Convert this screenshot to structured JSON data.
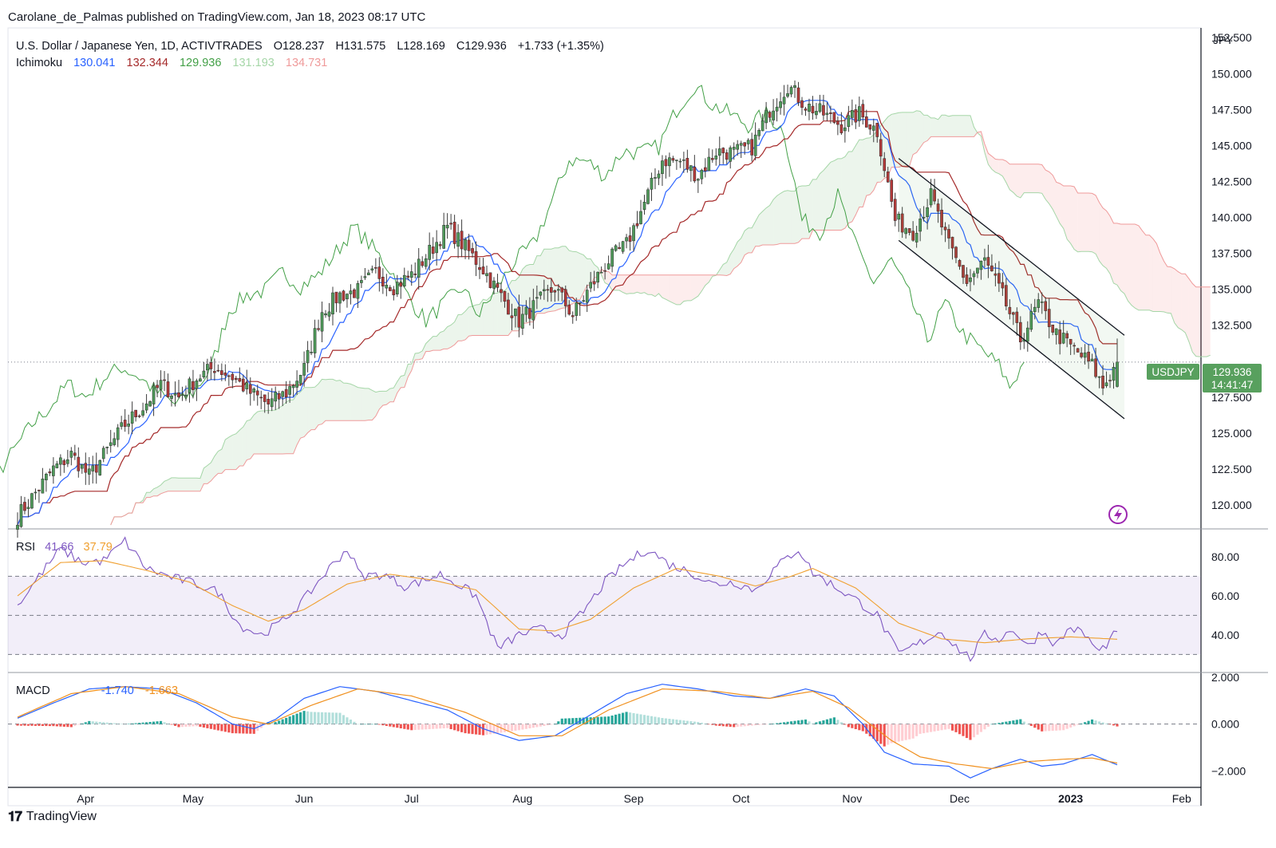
{
  "caption": "Carolane_de_Palmas published on TradingView.com, Jan 18, 2023 08:17 UTC",
  "footer": {
    "brand": "TradingView",
    "logo_glyph": "𝟏𝟕"
  },
  "colors": {
    "up": "#26a69a",
    "up_body": "#4f9a5a",
    "down": "#ef5350",
    "down_body": "#b23a3a",
    "tenkan": "#2962ff",
    "kijun": "#a52a2a",
    "chikou": "#43a047",
    "span_a": "#a5d6a7",
    "span_b": "#ef9a9a",
    "rsi": "#7e57c2",
    "rsi_ma": "#f0a030",
    "macd": "#2962ff",
    "signal": "#f0901e",
    "badge": "#58a05e"
  },
  "legend": {
    "symbol": "U.S. Dollar / Japanese Yen, 1D, ACTIVTRADES",
    "o": "O128.237",
    "h": "H131.575",
    "l": "L128.169",
    "c": "C129.936",
    "chg": "+1.733 (+1.35%)",
    "ichimoku_label": "Ichimoku",
    "ichimoku_values": [
      "130.041",
      "132.344",
      "129.936",
      "131.193",
      "134.731"
    ],
    "rsi_label": "RSI",
    "rsi_values": [
      "41.66",
      "37.79"
    ],
    "macd_label": "MACD",
    "macd_values": [
      "-1.740",
      "-1.663"
    ]
  },
  "price_badge": {
    "symbol": "USDJPY",
    "price": "129.936",
    "countdown": "14:41:47"
  },
  "currency_label": "JPY",
  "chart_data": {
    "type": "candlestick",
    "title": "U.S. Dollar / Japanese Yen, 1D, ACTIVTRADES",
    "price_axis": {
      "min": 118.5,
      "max": 152.9,
      "ticks": [
        "152.500",
        "150.000",
        "147.500",
        "145.000",
        "142.500",
        "140.000",
        "137.500",
        "135.000",
        "132.500",
        "127.500",
        "125.000",
        "122.500",
        "120.000"
      ]
    },
    "rsi_axis": {
      "min": 22,
      "max": 93,
      "ticks": [
        "80.00",
        "60.00",
        "40.00"
      ],
      "band": [
        30,
        70
      ],
      "mid": 50
    },
    "macd_axis": {
      "min": -2.6,
      "max": 2.1,
      "ticks": [
        "2.000",
        "0.000",
        "−2.000"
      ]
    },
    "time_axis": {
      "labels": [
        "Apr",
        "May",
        "Jun",
        "Jul",
        "Aug",
        "Sep",
        "Oct",
        "Nov",
        "Dec",
        "2023",
        "Feb"
      ],
      "label_days": [
        19,
        49,
        80,
        110,
        141,
        172,
        202,
        233,
        263,
        294,
        325
      ]
    },
    "last_day": 307,
    "closes": [
      [
        0,
        119.2
      ],
      [
        10,
        122.5
      ],
      [
        15,
        123.5
      ],
      [
        20,
        122.0
      ],
      [
        25,
        123.8
      ],
      [
        30,
        125.6
      ],
      [
        35,
        126.8
      ],
      [
        40,
        128.4
      ],
      [
        45,
        127.5
      ],
      [
        50,
        128.8
      ],
      [
        55,
        129.6
      ],
      [
        60,
        128.9
      ],
      [
        65,
        127.8
      ],
      [
        70,
        127.0
      ],
      [
        75,
        127.8
      ],
      [
        80,
        129.5
      ],
      [
        85,
        133.5
      ],
      [
        90,
        134.6
      ],
      [
        95,
        134.9
      ],
      [
        100,
        136.2
      ],
      [
        105,
        135.2
      ],
      [
        110,
        136.0
      ],
      [
        115,
        137.6
      ],
      [
        120,
        139.3
      ],
      [
        125,
        137.9
      ],
      [
        130,
        136.4
      ],
      [
        135,
        134.5
      ],
      [
        140,
        132.8
      ],
      [
        145,
        134.0
      ],
      [
        150,
        135.1
      ],
      [
        155,
        133.2
      ],
      [
        160,
        135.2
      ],
      [
        165,
        137.0
      ],
      [
        170,
        138.1
      ],
      [
        175,
        141.0
      ],
      [
        180,
        144.0
      ],
      [
        185,
        143.9
      ],
      [
        190,
        142.9
      ],
      [
        195,
        144.6
      ],
      [
        200,
        144.5
      ],
      [
        205,
        144.9
      ],
      [
        210,
        147.5
      ],
      [
        215,
        149.2
      ],
      [
        220,
        147.8
      ],
      [
        225,
        147.2
      ],
      [
        230,
        146.4
      ],
      [
        235,
        147.2
      ],
      [
        240,
        146.0
      ],
      [
        245,
        139.8
      ],
      [
        250,
        139.0
      ],
      [
        255,
        141.5
      ],
      [
        260,
        138.0
      ],
      [
        265,
        135.5
      ],
      [
        270,
        137.0
      ],
      [
        275,
        134.5
      ],
      [
        280,
        131.5
      ],
      [
        285,
        134.0
      ],
      [
        290,
        131.9
      ],
      [
        295,
        130.8
      ],
      [
        300,
        129.7
      ],
      [
        303,
        128.2
      ],
      [
        307,
        129.9
      ]
    ],
    "rsi_points": [
      [
        0,
        55
      ],
      [
        6,
        70
      ],
      [
        12,
        84
      ],
      [
        18,
        77
      ],
      [
        24,
        78
      ],
      [
        30,
        88
      ],
      [
        36,
        74
      ],
      [
        42,
        70
      ],
      [
        50,
        66
      ],
      [
        56,
        62
      ],
      [
        62,
        45
      ],
      [
        68,
        40
      ],
      [
        74,
        47
      ],
      [
        80,
        58
      ],
      [
        86,
        72
      ],
      [
        92,
        84
      ],
      [
        96,
        70
      ],
      [
        102,
        71
      ],
      [
        108,
        65
      ],
      [
        114,
        68
      ],
      [
        118,
        71
      ],
      [
        122,
        67
      ],
      [
        128,
        60
      ],
      [
        134,
        33
      ],
      [
        140,
        40
      ],
      [
        146,
        43
      ],
      [
        152,
        40
      ],
      [
        158,
        52
      ],
      [
        164,
        67
      ],
      [
        170,
        77
      ],
      [
        176,
        84
      ],
      [
        182,
        76
      ],
      [
        188,
        72
      ],
      [
        194,
        66
      ],
      [
        200,
        67
      ],
      [
        206,
        63
      ],
      [
        212,
        75
      ],
      [
        218,
        84
      ],
      [
        222,
        72
      ],
      [
        228,
        65
      ],
      [
        234,
        58
      ],
      [
        240,
        50
      ],
      [
        246,
        30
      ],
      [
        252,
        36
      ],
      [
        258,
        42
      ],
      [
        262,
        34
      ],
      [
        266,
        28
      ],
      [
        270,
        40
      ],
      [
        274,
        38
      ],
      [
        278,
        43
      ],
      [
        282,
        34
      ],
      [
        286,
        42
      ],
      [
        290,
        35
      ],
      [
        294,
        44
      ],
      [
        298,
        40
      ],
      [
        302,
        31
      ],
      [
        307,
        41.7
      ]
    ],
    "rsi_ma_points": [
      [
        0,
        60
      ],
      [
        12,
        77
      ],
      [
        24,
        78
      ],
      [
        36,
        73
      ],
      [
        48,
        67
      ],
      [
        60,
        55
      ],
      [
        70,
        47
      ],
      [
        80,
        53
      ],
      [
        92,
        66
      ],
      [
        104,
        71
      ],
      [
        116,
        68
      ],
      [
        128,
        63
      ],
      [
        140,
        43
      ],
      [
        150,
        42
      ],
      [
        160,
        48
      ],
      [
        172,
        64
      ],
      [
        184,
        74
      ],
      [
        196,
        70
      ],
      [
        206,
        65
      ],
      [
        216,
        70
      ],
      [
        222,
        74
      ],
      [
        234,
        64
      ],
      [
        246,
        46
      ],
      [
        258,
        38
      ],
      [
        270,
        36
      ],
      [
        282,
        38
      ],
      [
        294,
        39
      ],
      [
        307,
        37.8
      ]
    ],
    "macd_points": [
      [
        0,
        0.25
      ],
      [
        10,
        0.9
      ],
      [
        20,
        1.5
      ],
      [
        30,
        1.6
      ],
      [
        40,
        1.5
      ],
      [
        50,
        0.9
      ],
      [
        60,
        0.0
      ],
      [
        66,
        -0.2
      ],
      [
        72,
        0.2
      ],
      [
        80,
        1.1
      ],
      [
        90,
        1.6
      ],
      [
        100,
        1.4
      ],
      [
        110,
        1.0
      ],
      [
        120,
        0.6
      ],
      [
        130,
        -0.2
      ],
      [
        140,
        -0.7
      ],
      [
        150,
        -0.5
      ],
      [
        160,
        0.4
      ],
      [
        170,
        1.3
      ],
      [
        180,
        1.7
      ],
      [
        190,
        1.5
      ],
      [
        200,
        1.2
      ],
      [
        210,
        1.1
      ],
      [
        220,
        1.5
      ],
      [
        228,
        1.2
      ],
      [
        236,
        0.0
      ],
      [
        242,
        -1.2
      ],
      [
        250,
        -1.7
      ],
      [
        260,
        -1.8
      ],
      [
        266,
        -2.3
      ],
      [
        272,
        -1.9
      ],
      [
        280,
        -1.5
      ],
      [
        286,
        -1.8
      ],
      [
        292,
        -1.7
      ],
      [
        300,
        -1.3
      ],
      [
        307,
        -1.74
      ]
    ],
    "signal_points": [
      [
        0,
        0.3
      ],
      [
        15,
        1.3
      ],
      [
        30,
        1.6
      ],
      [
        45,
        1.3
      ],
      [
        60,
        0.3
      ],
      [
        70,
        0.0
      ],
      [
        82,
        0.8
      ],
      [
        95,
        1.5
      ],
      [
        110,
        1.2
      ],
      [
        125,
        0.5
      ],
      [
        140,
        -0.5
      ],
      [
        152,
        -0.5
      ],
      [
        165,
        0.6
      ],
      [
        180,
        1.5
      ],
      [
        195,
        1.4
      ],
      [
        210,
        1.1
      ],
      [
        222,
        1.4
      ],
      [
        232,
        0.7
      ],
      [
        244,
        -0.7
      ],
      [
        252,
        -1.4
      ],
      [
        262,
        -1.7
      ],
      [
        272,
        -1.9
      ],
      [
        282,
        -1.6
      ],
      [
        292,
        -1.5
      ],
      [
        300,
        -1.45
      ],
      [
        307,
        -1.663
      ]
    ],
    "channel": {
      "upper": [
        [
          246,
          144.1
        ],
        [
          309,
          131.8
        ]
      ],
      "lower": [
        [
          246,
          138.4
        ],
        [
          309,
          126.0
        ]
      ]
    }
  }
}
